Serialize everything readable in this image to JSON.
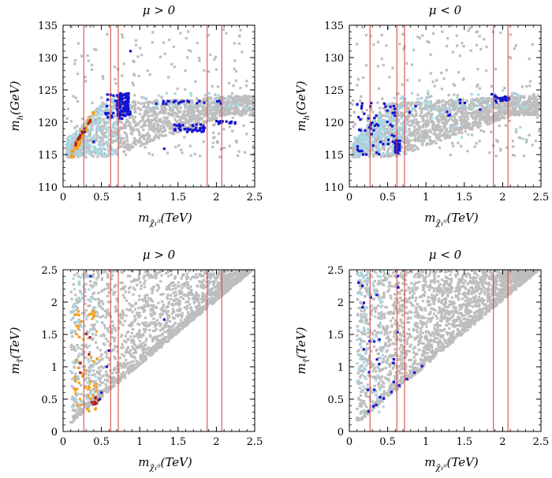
{
  "chart_data": [
    {
      "id": "tl",
      "type": "scatter",
      "title": "μ > 0",
      "xlabel": "m",
      "xsub": "χ̃₁⁰",
      "xunit": "(TeV)",
      "ylabel": "m",
      "ysub": "h",
      "yunit": "(GeV)",
      "xlim": [
        0,
        2.5
      ],
      "ylim": [
        110,
        135
      ],
      "xticks": [
        "0",
        "0.5",
        "1",
        "1.5",
        "2",
        "2.5"
      ],
      "yticks": [
        "110",
        "115",
        "120",
        "125",
        "130",
        "135"
      ],
      "vlines": [
        0.27,
        0.62,
        0.72,
        1.88,
        2.07
      ]
    },
    {
      "id": "tr",
      "type": "scatter",
      "title": "μ < 0",
      "xlabel": "m",
      "xsub": "χ̃₁⁰",
      "xunit": "(TeV)",
      "ylabel": "m",
      "ysub": "h",
      "yunit": "(GeV)",
      "xlim": [
        0,
        2.5
      ],
      "ylim": [
        110,
        135
      ],
      "xticks": [
        "0",
        "0.5",
        "1",
        "1.5",
        "2",
        "2.5"
      ],
      "yticks": [
        "110",
        "115",
        "120",
        "125",
        "130",
        "135"
      ],
      "vlines": [
        0.27,
        0.62,
        0.72,
        1.88,
        2.07
      ]
    },
    {
      "id": "bl",
      "type": "scatter",
      "title": "μ > 0",
      "xlabel": "m",
      "xsub": "χ̃₁⁰",
      "xunit": "(TeV)",
      "ylabel": "m",
      "ysub": "τ̃",
      "yunit": "(TeV)",
      "xlim": [
        0,
        2.5
      ],
      "ylim": [
        0,
        2.5
      ],
      "xticks": [
        "0",
        "0.5",
        "1",
        "1.5",
        "2",
        "2.5"
      ],
      "yticks": [
        "0",
        "0.5",
        "1",
        "1.5",
        "2",
        "2.5"
      ],
      "vlines": [
        0.27,
        0.62,
        0.72,
        1.88,
        2.07
      ]
    },
    {
      "id": "br",
      "type": "scatter",
      "title": "μ < 0",
      "xlabel": "m",
      "xsub": "χ̃₁⁰",
      "xunit": "(TeV)",
      "ylabel": "m",
      "ysub": "τ̃",
      "yunit": "(TeV)",
      "xlim": [
        0,
        2.5
      ],
      "ylim": [
        0,
        2.5
      ],
      "xticks": [
        "0",
        "0.5",
        "1",
        "1.5",
        "2",
        "2.5"
      ],
      "yticks": [
        "0",
        "0.5",
        "1",
        "1.5",
        "2",
        "2.5"
      ],
      "vlines": [
        0.27,
        0.62,
        0.72,
        1.88,
        2.07
      ]
    }
  ],
  "colors": {
    "gray": "#bdbdbd",
    "lightblue": "#a8d8e6",
    "blue": "#1414d2",
    "orange": "#f5a020",
    "darkred": "#a8201c",
    "redline": "#d63a3a"
  }
}
